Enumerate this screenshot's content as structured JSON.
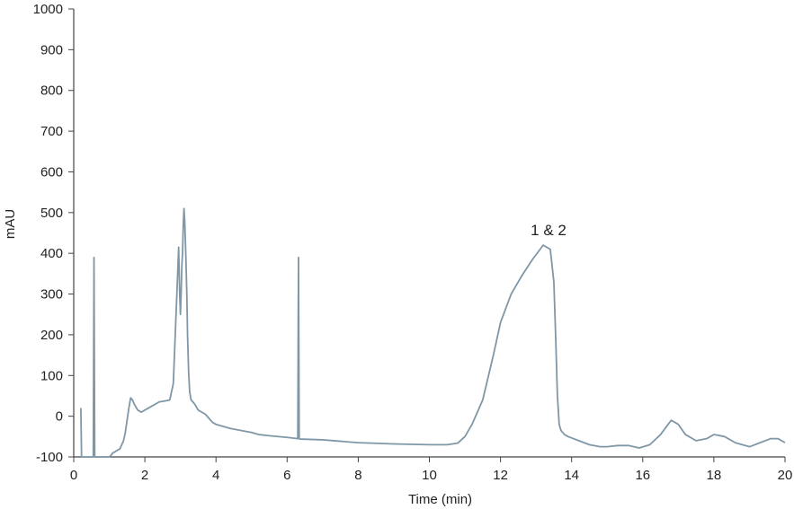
{
  "chart_data": {
    "type": "line",
    "title": "",
    "xlabel": "Time (min)",
    "ylabel": "mAU",
    "xlim": [
      0,
      20
    ],
    "ylim": [
      -100,
      1000
    ],
    "xticks": [
      0,
      2,
      4,
      6,
      8,
      10,
      12,
      14,
      16,
      18,
      20
    ],
    "yticks": [
      -100,
      0,
      100,
      200,
      300,
      400,
      500,
      600,
      700,
      800,
      900,
      1000
    ],
    "grid": false,
    "legend": "none",
    "line_color": "#7f97a7",
    "series": [
      {
        "x": [
          0.2,
          0.22,
          0.24,
          0.26,
          0.3,
          0.4,
          0.5,
          0.55,
          0.57,
          0.59,
          0.62,
          0.7,
          0.8,
          0.9,
          1.0,
          1.05,
          1.1,
          1.15,
          1.2,
          1.3,
          1.4,
          1.45,
          1.5,
          1.55,
          1.6,
          1.65,
          1.7,
          1.8,
          1.9,
          2.0,
          2.2,
          2.4,
          2.6,
          2.7,
          2.8,
          2.9,
          2.95,
          2.98,
          3.0,
          3.02,
          3.04,
          3.06,
          3.08,
          3.1,
          3.12,
          3.15,
          3.18,
          3.2,
          3.23,
          3.26,
          3.3,
          3.35,
          3.4,
          3.5,
          3.6,
          3.7,
          3.8,
          3.9,
          4.0,
          4.2,
          4.4,
          4.7,
          5.0,
          5.2,
          5.5,
          6.0,
          6.3,
          6.32,
          6.34,
          6.36,
          7.0,
          8.0,
          9.0,
          10.0,
          10.5,
          10.8,
          11.0,
          11.2,
          11.5,
          11.8,
          12.0,
          12.3,
          12.6,
          12.9,
          13.2,
          13.4,
          13.5,
          13.55,
          13.6,
          13.65,
          13.7,
          13.75,
          13.8,
          13.9,
          14.2,
          14.5,
          14.8,
          15.0,
          15.3,
          15.6,
          15.9,
          16.2,
          16.5,
          16.8,
          17.0,
          17.2,
          17.5,
          17.8,
          18.0,
          18.3,
          18.6,
          19.0,
          19.3,
          19.6,
          19.8,
          20.0
        ],
        "y": [
          20,
          -100,
          -100,
          -100,
          -100,
          -100,
          -100,
          -100,
          390,
          -100,
          -100,
          -100,
          -100,
          -100,
          -100,
          -96,
          -90,
          -88,
          -85,
          -80,
          -60,
          -40,
          -10,
          20,
          45,
          40,
          30,
          15,
          10,
          15,
          25,
          35,
          38,
          40,
          80,
          300,
          415,
          300,
          250,
          300,
          370,
          400,
          470,
          510,
          480,
          400,
          300,
          200,
          110,
          60,
          40,
          35,
          30,
          15,
          10,
          5,
          -5,
          -15,
          -20,
          -25,
          -30,
          -35,
          -40,
          -45,
          -48,
          -52,
          -55,
          390,
          -55,
          -56,
          -58,
          -65,
          -68,
          -70,
          -70,
          -66,
          -50,
          -20,
          40,
          150,
          230,
          300,
          345,
          385,
          420,
          410,
          330,
          200,
          50,
          -20,
          -35,
          -40,
          -45,
          -50,
          -60,
          -70,
          -75,
          -75,
          -72,
          -72,
          -78,
          -70,
          -45,
          -10,
          -20,
          -45,
          -60,
          -55,
          -45,
          -50,
          -65,
          -75,
          -65,
          -55,
          -55,
          -65
        ]
      }
    ],
    "annotations": [
      {
        "text": "1 & 2",
        "x": 13.35,
        "y": 445
      }
    ]
  }
}
